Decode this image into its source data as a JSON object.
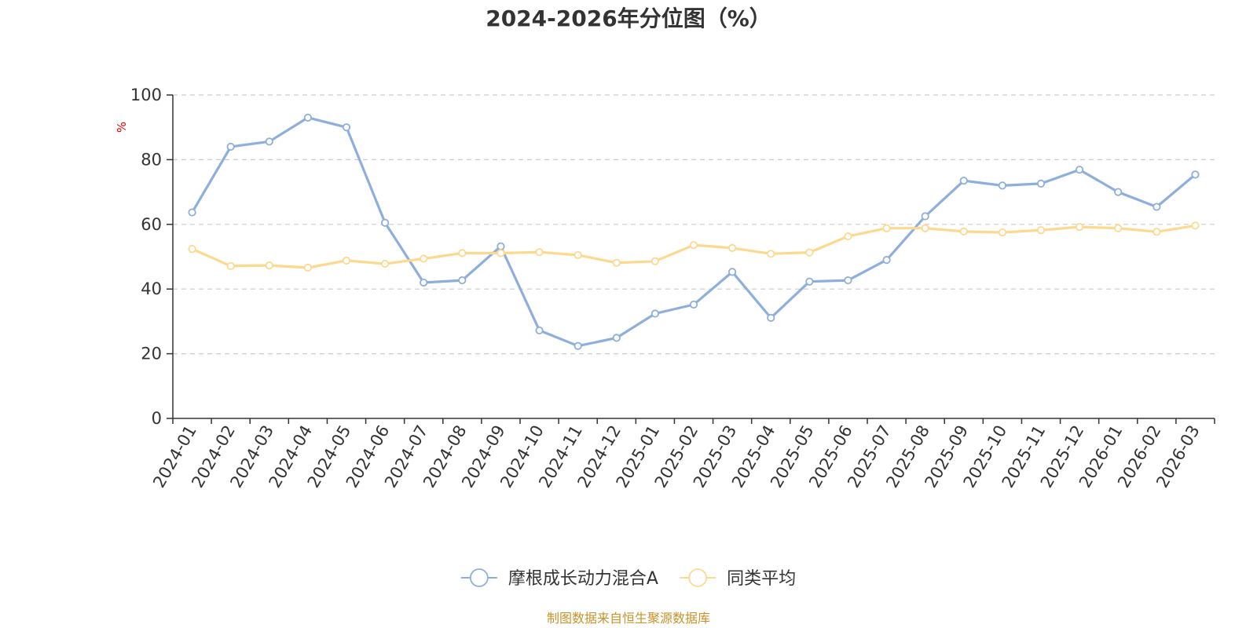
{
  "chart_data": {
    "type": "line",
    "title": "2024-2026年分位图（%）",
    "ylabel": "%",
    "ylim": [
      0,
      100
    ],
    "yticks": [
      0,
      20,
      40,
      60,
      80,
      100
    ],
    "grid": true,
    "legend_position": "bottom",
    "x": [
      "2024-01",
      "2024-02",
      "2024-03",
      "2024-04",
      "2024-05",
      "2024-06",
      "2024-07",
      "2024-08",
      "2024-09",
      "2024-10",
      "2024-11",
      "2024-12",
      "2025-01",
      "2025-02",
      "2025-03",
      "2025-04",
      "2025-05",
      "2025-06",
      "2025-07",
      "2025-08",
      "2025-09",
      "2025-10",
      "2025-11",
      "2025-12",
      "2026-01",
      "2026-02",
      "2026-03"
    ],
    "series": [
      {
        "name": "摩根成长动力混合A",
        "color": "#8eaedb",
        "values": [
          63.7,
          84.0,
          85.6,
          93.0,
          90.0,
          60.5,
          42.0,
          42.7,
          53.2,
          27.2,
          22.4,
          24.9,
          32.4,
          35.2,
          45.3,
          31.1,
          42.3,
          42.7,
          49.0,
          62.5,
          73.5,
          72.0,
          72.6,
          76.9,
          70.0,
          65.4,
          75.4
        ]
      },
      {
        "name": "同类平均",
        "color": "#fcd98f",
        "values": [
          52.4,
          47.1,
          47.3,
          46.6,
          48.8,
          47.8,
          49.4,
          51.1,
          51.1,
          51.4,
          50.5,
          48.1,
          48.6,
          53.6,
          52.7,
          50.9,
          51.3,
          56.3,
          58.8,
          58.8,
          57.8,
          57.5,
          58.2,
          59.2,
          58.8,
          57.7,
          59.6
        ]
      }
    ]
  },
  "footer": {
    "source": "制图数据来自恒生聚源数据库"
  }
}
